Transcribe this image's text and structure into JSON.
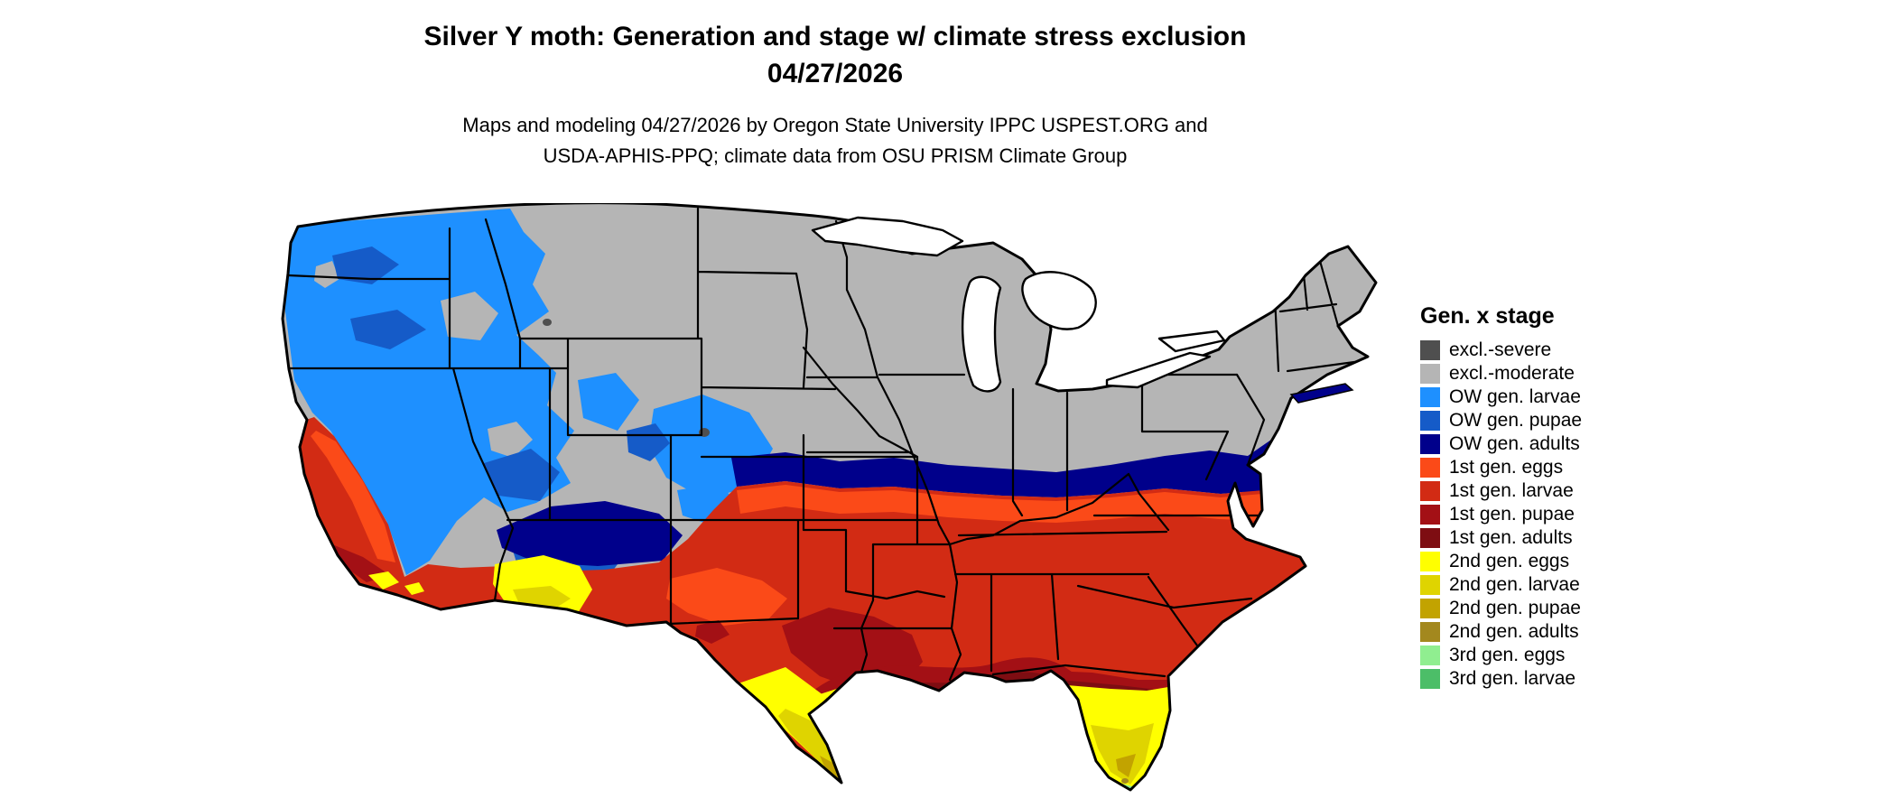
{
  "title": {
    "line1": "Silver Y moth: Generation and stage w/ climate stress exclusion",
    "line2": "04/27/2026"
  },
  "attribution": {
    "line1": "Maps and modeling 04/27/2026 by Oregon State University IPPC USPEST.ORG and",
    "line2": "USDA-APHIS-PPQ; climate data from OSU PRISM Climate Group"
  },
  "legend": {
    "title": "Gen. x stage",
    "items": [
      {
        "label": "excl.-severe",
        "color_key": "excl_severe"
      },
      {
        "label": "excl.-moderate",
        "color_key": "excl_moderate"
      },
      {
        "label": "OW gen. larvae",
        "color_key": "ow_larvae"
      },
      {
        "label": "OW gen. pupae",
        "color_key": "ow_pupae"
      },
      {
        "label": "OW gen. adults",
        "color_key": "ow_adults"
      },
      {
        "label": "1st gen. eggs",
        "color_key": "g1_eggs"
      },
      {
        "label": "1st gen. larvae",
        "color_key": "g1_larvae"
      },
      {
        "label": "1st gen. pupae",
        "color_key": "g1_pupae"
      },
      {
        "label": "1st gen. adults",
        "color_key": "g1_adults"
      },
      {
        "label": "2nd gen. eggs",
        "color_key": "g2_eggs"
      },
      {
        "label": "2nd gen. larvae",
        "color_key": "g2_larvae"
      },
      {
        "label": "2nd gen. pupae",
        "color_key": "g2_pupae"
      },
      {
        "label": "2nd gen. adults",
        "color_key": "g2_adults"
      },
      {
        "label": "3rd gen. eggs",
        "color_key": "g3_eggs"
      },
      {
        "label": "3rd gen. larvae",
        "color_key": "g3_larvae"
      }
    ]
  },
  "colors": {
    "excl_severe": "#4f4f4f",
    "excl_moderate": "#b5b5b5",
    "ow_larvae": "#1e90ff",
    "ow_pupae": "#155bc8",
    "ow_adults": "#00008b",
    "g1_eggs": "#fb4a18",
    "g1_larvae": "#d22b14",
    "g1_pupae": "#a31015",
    "g1_adults": "#7e0d12",
    "g2_eggs": "#ffff00",
    "g2_larvae": "#dfd400",
    "g2_pupae": "#c2a300",
    "g2_adults": "#a3881e",
    "g3_eggs": "#90ee90",
    "g3_larvae": "#4cbe68"
  }
}
